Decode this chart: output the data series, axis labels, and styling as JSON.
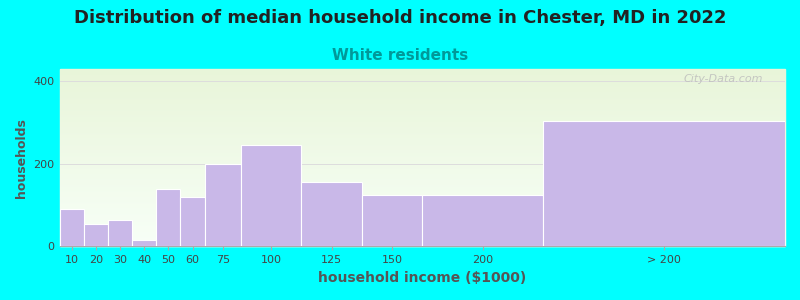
{
  "title": "Distribution of median household income in Chester, MD in 2022",
  "subtitle": "White residents",
  "xlabel": "household income ($1000)",
  "ylabel": "households",
  "categories": [
    "10",
    "20",
    "30",
    "40",
    "50",
    "60",
    "75",
    "100",
    "125",
    "150",
    "200",
    "> 200"
  ],
  "left_edges": [
    0,
    10,
    20,
    30,
    40,
    50,
    60,
    75,
    100,
    125,
    150,
    200
  ],
  "widths": [
    10,
    10,
    10,
    10,
    10,
    10,
    15,
    25,
    25,
    25,
    50,
    100
  ],
  "values": [
    90,
    55,
    65,
    15,
    140,
    120,
    200,
    245,
    155,
    125,
    125,
    305
  ],
  "bar_color": "#c9b8e8",
  "background_color": "#00ffff",
  "ylim": [
    0,
    430
  ],
  "yticks": [
    0,
    200,
    400
  ],
  "title_fontsize": 13,
  "subtitle_fontsize": 11,
  "subtitle_color": "#009999",
  "xlabel_fontsize": 10,
  "ylabel_fontsize": 9,
  "tick_label_fontsize": 8,
  "watermark": "City-Data.com",
  "xtick_positions": [
    5,
    15,
    25,
    35,
    45,
    55,
    67.5,
    87.5,
    112.5,
    137.5,
    175,
    250
  ],
  "xtick_labels": [
    "10",
    "20",
    "30",
    "40",
    "50",
    "60",
    "75",
    "100",
    "125",
    "150",
    "200",
    "> 200"
  ]
}
